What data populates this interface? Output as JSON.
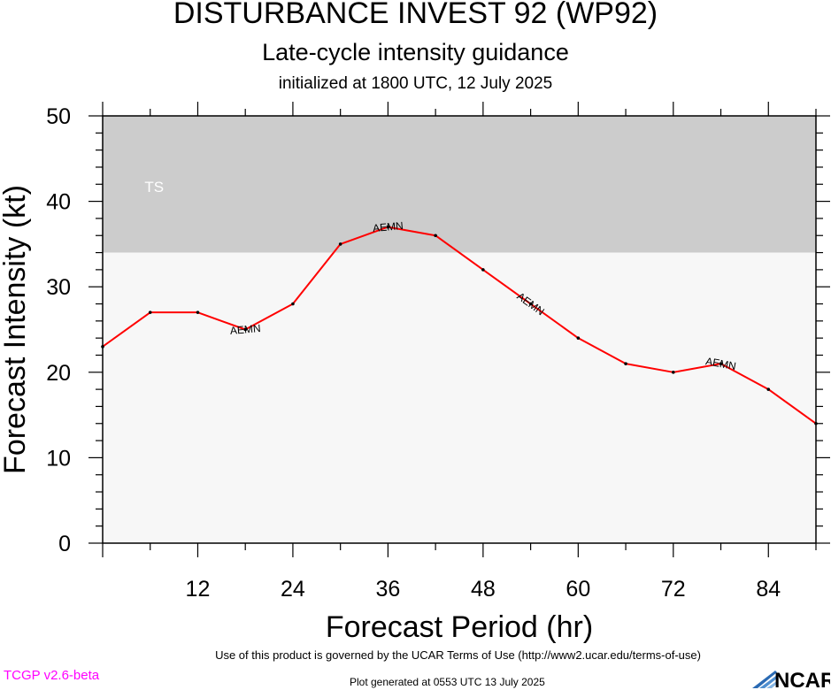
{
  "header": {
    "title": "DISTURBANCE INVEST 92 (WP92)",
    "subtitle": "Late-cycle intensity guidance",
    "init_text": "initialized at 1800 UTC, 12 July 2025"
  },
  "footer": {
    "terms": "Use of this product is governed by the UCAR Terms of Use (http://www2.ucar.edu/terms-of-use)",
    "version": "TCGP v2.6-beta",
    "generated": "Plot generated at 0553 UTC   13 July 2025",
    "logo_text": "NCAR"
  },
  "chart_data": {
    "type": "line",
    "title": "DISTURBANCE INVEST 92 (WP92)",
    "subtitle": "Late-cycle intensity guidance",
    "xlabel": "Forecast Period (hr)",
    "ylabel": "Forecast Intensity (kt)",
    "xlim": [
      0,
      90
    ],
    "ylim": [
      0,
      50
    ],
    "xticks": [
      12,
      24,
      36,
      48,
      60,
      72,
      84
    ],
    "yticks": [
      0,
      10,
      20,
      30,
      40,
      50
    ],
    "bands": [
      {
        "label": "TS",
        "from": 34,
        "to": 50,
        "color": "#cccccc"
      },
      {
        "label": "",
        "from": 0,
        "to": 34,
        "color": "#f7f7f7"
      }
    ],
    "series": [
      {
        "name": "AEMN",
        "color": "#ff0000",
        "x": [
          0,
          6,
          12,
          18,
          24,
          30,
          36,
          42,
          48,
          54,
          60,
          66,
          72,
          78,
          84,
          90
        ],
        "y": [
          23,
          27,
          27,
          25,
          28,
          35,
          37,
          36,
          32,
          28,
          24,
          21,
          20,
          21,
          18,
          14
        ],
        "label_at": [
          18,
          36,
          54,
          78
        ]
      }
    ]
  }
}
